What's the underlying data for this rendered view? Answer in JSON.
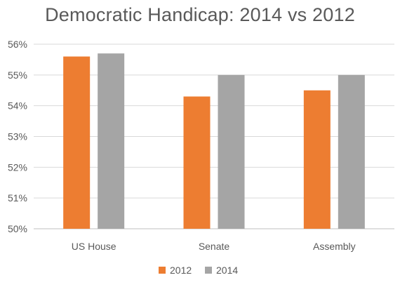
{
  "chart_data": {
    "type": "bar",
    "title": "Democratic Handicap: 2014 vs 2012",
    "xlabel": "",
    "ylabel": "",
    "categories": [
      "US House",
      "Senate",
      "Assembly"
    ],
    "series": [
      {
        "name": "2012",
        "color": "#ED7D31",
        "values": [
          55.6,
          54.3,
          54.5
        ]
      },
      {
        "name": "2014",
        "color": "#A5A5A5",
        "values": [
          55.7,
          55.0,
          55.0
        ]
      }
    ],
    "ylim": [
      50,
      56
    ],
    "yticks": [
      "50%",
      "51%",
      "52%",
      "53%",
      "54%",
      "55%",
      "56%"
    ],
    "grid": true,
    "legend_position": "bottom"
  }
}
